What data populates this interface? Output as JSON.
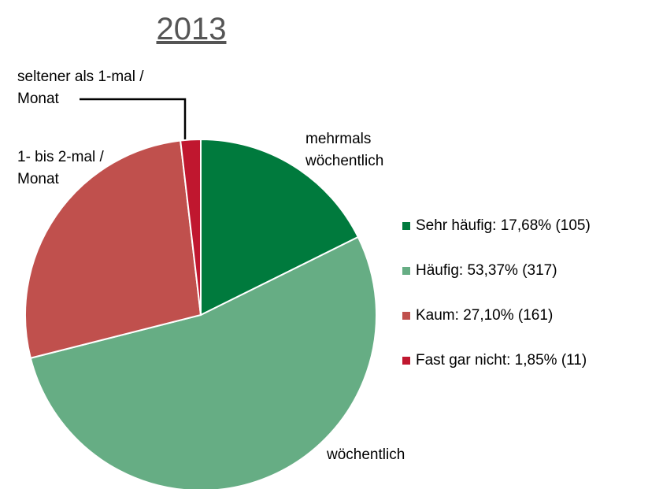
{
  "chart_data": {
    "type": "pie",
    "title": "2013",
    "categories": [
      [
        "mehrmals",
        "wöchentlich"
      ],
      [
        "wöchentlich"
      ],
      [
        "1- bis 2-mal /",
        "Monat"
      ],
      [
        "seltener als 1-mal /",
        "Monat"
      ]
    ],
    "legend": [
      "Sehr häufig: 17,68% (105)",
      "Häufig: 53,37% (317)",
      "Kaum: 27,10% (161)",
      "Fast gar nicht: 1,85% (11)"
    ],
    "values": [
      17.68,
      53.37,
      27.1,
      1.85
    ],
    "colors": [
      "#007a3d",
      "#66ad84",
      "#c0504d",
      "#c0172f"
    ]
  }
}
